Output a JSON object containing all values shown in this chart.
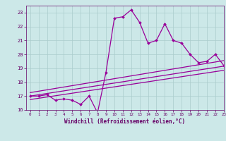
{
  "xlabel": "Windchill (Refroidissement éolien,°C)",
  "xlim": [
    -0.5,
    23
  ],
  "ylim": [
    16,
    23.5
  ],
  "yticks": [
    16,
    17,
    18,
    19,
    20,
    21,
    22,
    23
  ],
  "xticks": [
    0,
    1,
    2,
    3,
    4,
    5,
    6,
    7,
    8,
    9,
    10,
    11,
    12,
    13,
    14,
    15,
    16,
    17,
    18,
    19,
    20,
    21,
    22,
    23
  ],
  "main_x": [
    0,
    1,
    2,
    3,
    4,
    5,
    6,
    7,
    8,
    9,
    10,
    11,
    12,
    13,
    14,
    15,
    16,
    17,
    18,
    19,
    20,
    21,
    22,
    23
  ],
  "main_y": [
    17.0,
    17.0,
    17.1,
    16.7,
    16.8,
    16.7,
    16.4,
    17.0,
    15.8,
    18.7,
    22.6,
    22.7,
    23.2,
    22.3,
    20.8,
    21.0,
    22.2,
    21.0,
    20.8,
    20.0,
    19.4,
    19.5,
    20.0,
    19.2
  ],
  "line1_x": [
    0,
    23
  ],
  "line1_y": [
    17.0,
    19.15
  ],
  "line2_x": [
    0,
    23
  ],
  "line2_y": [
    17.25,
    19.55
  ],
  "line3_x": [
    0,
    23
  ],
  "line3_y": [
    16.75,
    18.85
  ],
  "line_color": "#990099",
  "bg_color": "#cce8e8",
  "grid_color": "#aacccc",
  "label_color": "#660066",
  "tick_color": "#660066"
}
